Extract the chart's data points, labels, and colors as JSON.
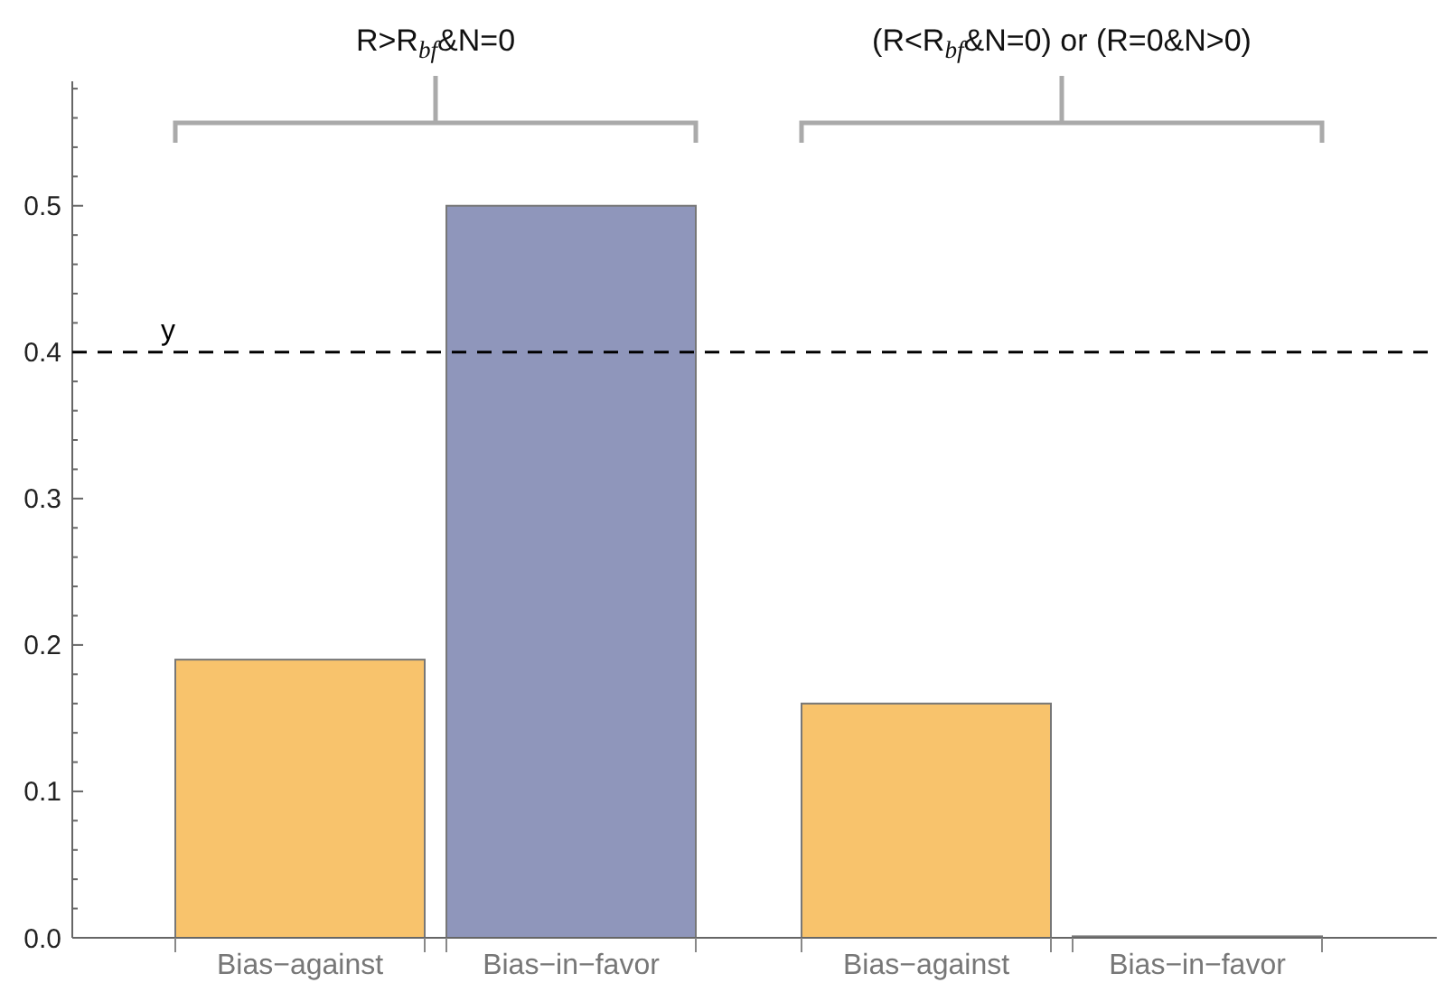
{
  "chart_data": {
    "type": "bar",
    "categories": [
      "Bias−against",
      "Bias−in−favor",
      "Bias−against",
      "Bias−in−favor"
    ],
    "values": [
      0.19,
      0.5,
      0.16,
      0.001
    ],
    "colors": [
      "#f8c36c",
      "#8f96bb",
      "#f8c36c",
      "#8f96bb"
    ],
    "ylim": [
      0,
      0.585
    ],
    "yticks": [
      {
        "value": 0,
        "label": "0.0"
      },
      {
        "value": 0.02,
        "label": null
      },
      {
        "value": 0.04,
        "label": null
      },
      {
        "value": 0.06,
        "label": null
      },
      {
        "value": 0.08,
        "label": null
      },
      0.1,
      {
        "value": 0.12,
        "label": null
      },
      {
        "value": 0.14,
        "label": null
      },
      {
        "value": 0.16,
        "label": null
      },
      {
        "value": 0.18,
        "label": null
      },
      0.2,
      {
        "value": 0.22,
        "label": null
      },
      {
        "value": 0.24,
        "label": null
      },
      {
        "value": 0.26,
        "label": null
      },
      {
        "value": 0.28,
        "label": null
      },
      0.3,
      {
        "value": 0.32,
        "label": null
      },
      {
        "value": 0.34,
        "label": null
      },
      {
        "value": 0.36,
        "label": null
      },
      {
        "value": 0.38,
        "label": null
      },
      0.4,
      {
        "value": 0.42,
        "label": null
      },
      {
        "value": 0.44,
        "label": null
      },
      {
        "value": 0.46,
        "label": null
      },
      {
        "value": 0.48,
        "label": null
      },
      0.5,
      {
        "value": 0.52,
        "label": null
      },
      {
        "value": 0.54,
        "label": null
      },
      {
        "value": 0.56,
        "label": null
      },
      {
        "value": 0.58,
        "label": null
      }
    ],
    "ref_lines": [
      {
        "axis": "y",
        "value": 0.4,
        "label": "y",
        "color": "#000000",
        "line_style": "dashed"
      }
    ],
    "annotations": [
      "R>R$_{bf}$&N=0",
      "(R<R$_{bf}$&N=0) or (R=0&N>0)"
    ]
  }
}
